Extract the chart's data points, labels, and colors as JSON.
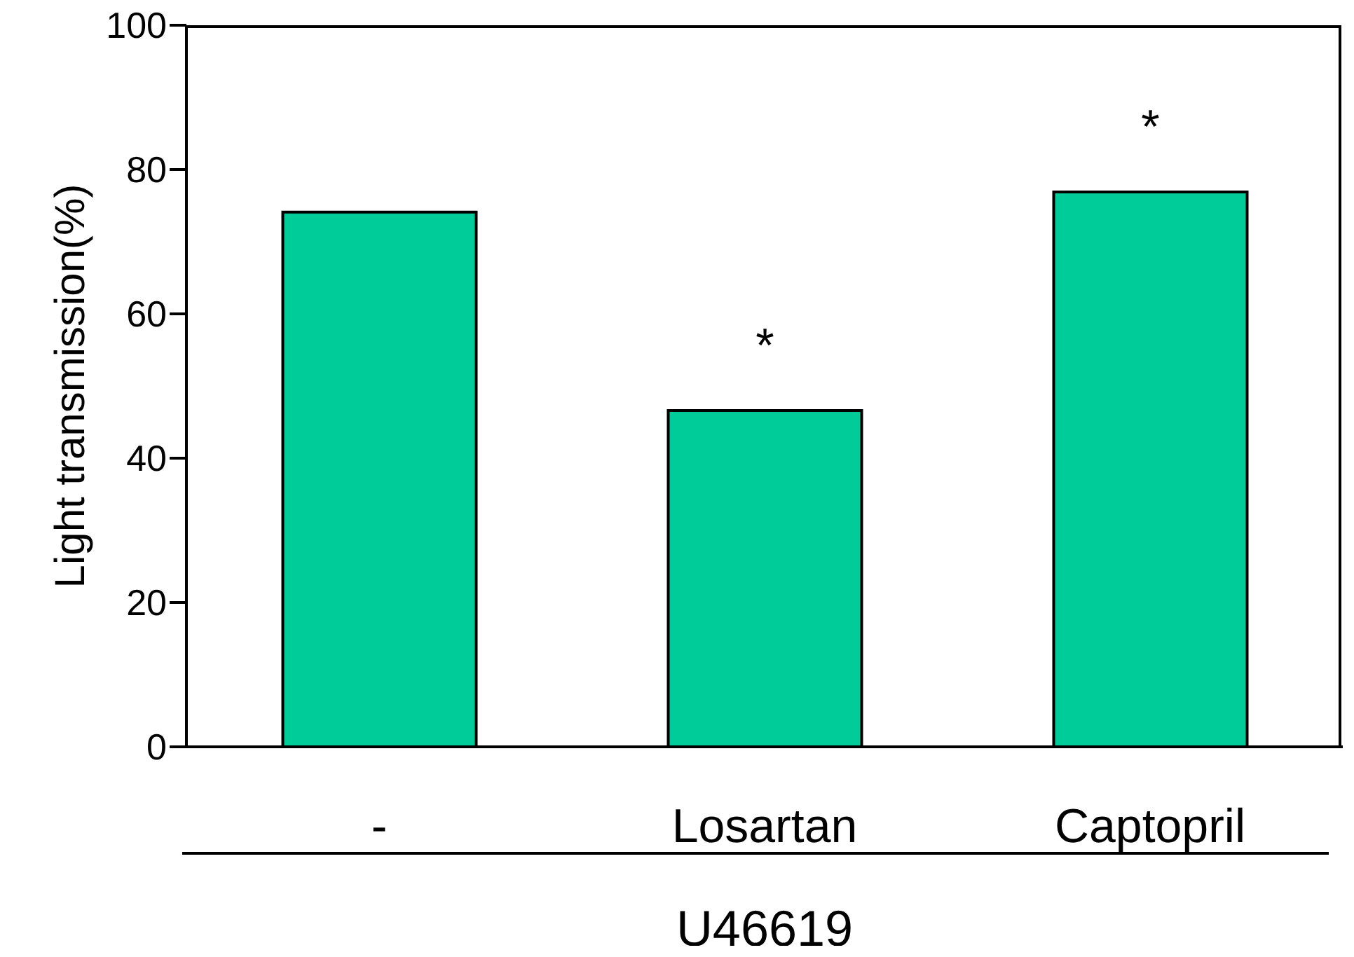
{
  "chart_data": {
    "type": "bar",
    "xlabel": "U46619",
    "ylabel": "Light transmission(%)",
    "categories": [
      "-",
      "Losartan",
      "Captopril"
    ],
    "values": [
      74.1,
      46.6,
      76.9
    ],
    "color": "#00cc99",
    "ylim": [
      0,
      100
    ],
    "yticks": [
      0,
      20,
      40,
      60,
      80,
      100
    ],
    "grid": false,
    "legend": false,
    "annotations": [
      {
        "text": "*",
        "x": "Losartan",
        "y": 46.6
      },
      {
        "text": "*",
        "x": "Captopril",
        "y": 76.9
      }
    ]
  }
}
